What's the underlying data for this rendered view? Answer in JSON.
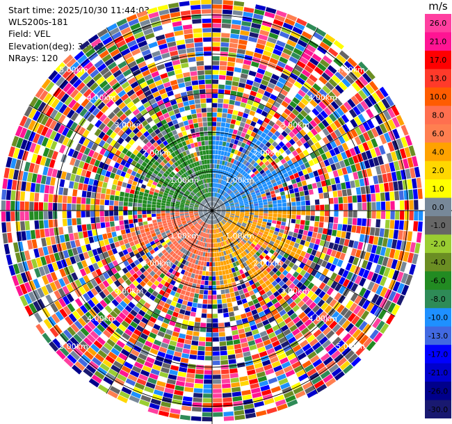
{
  "header": {
    "start_time": "Start time: 2025/10/30 11:44:03",
    "instrument": "WLS200s-181",
    "field": "Field: VEL",
    "elevation": "Elevation(deg): 35.00",
    "nrays": "NRays: 120"
  },
  "chart_data": {
    "type": "heatmap",
    "projection": "polar-ppi",
    "field": "VEL",
    "units": "m/s",
    "n_rays": 120,
    "elevation_deg": 35.0,
    "range_rings_km": [
      1,
      2,
      3,
      4,
      5
    ],
    "range_ring_labels": [
      "1.00km",
      "2.00km",
      "3.00km",
      "4.00km",
      "5.00km"
    ],
    "max_range_km": 5.4,
    "colorbar": {
      "label": "m/s",
      "ticks": [
        "26.0",
        "21.0",
        "17.0",
        "13.0",
        "10.0",
        "8.0",
        "6.0",
        "4.0",
        "2.0",
        "1.0",
        "0.0",
        "-1.0",
        "-2.0",
        "-4.0",
        "-6.0",
        "-8.0",
        "-10.0",
        "-13.0",
        "-17.0",
        "-21.0",
        "-26.0",
        "-30.0"
      ],
      "colors": [
        "#ff3fa0",
        "#ff1493",
        "#ff0000",
        "#ff3a2a",
        "#ff5c00",
        "#ff6f4f",
        "#ff7f50",
        "#ffa200",
        "#ffd700",
        "#ffff00",
        "#778899",
        "#666666",
        "#9acd32",
        "#6b8e23",
        "#228b22",
        "#2e8b57",
        "#1e90ff",
        "#4169e1",
        "#0000ff",
        "#0000cd",
        "#00008b",
        "#191970"
      ]
    },
    "pattern": {
      "inner_region_km": 2.2,
      "inner_features": [
        {
          "sector": "north-east",
          "value": -10.0
        },
        {
          "sector": "north-west",
          "value": -6.0
        },
        {
          "sector": "south-west",
          "value": 8.0
        },
        {
          "sector": "south-east",
          "value": 4.0
        },
        {
          "sector": "near-center",
          "value": 0.0
        }
      ],
      "outer_region": "noise"
    }
  }
}
